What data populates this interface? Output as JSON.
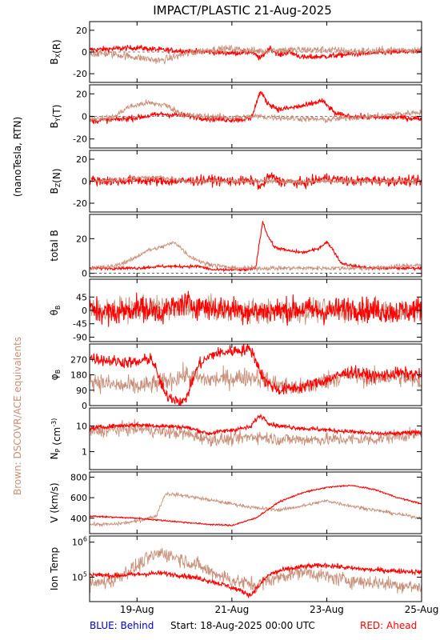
{
  "title": "IMPACT/PLASTIC   21-Aug-2025",
  "left_labels": {
    "units": "(nanoTesla, RTN)",
    "brown_note": "Brown: DSCOVR/ACE equivalents"
  },
  "footer": {
    "blue_label": "BLUE: Behind",
    "start_label": "Start: 18-Aug-2025 00:00 UTC",
    "red_label": "RED: Ahead"
  },
  "colors": {
    "ahead": "#ff0000",
    "brown": "#c8907a",
    "blue": "#0000cc",
    "axis": "#000000",
    "background": "#ffffff"
  },
  "chart_data": {
    "type": "line",
    "x_range_days": [
      18.0,
      25.0
    ],
    "x_ticks": [
      {
        "day": 19,
        "label": "19-Aug"
      },
      {
        "day": 21,
        "label": "21-Aug"
      },
      {
        "day": 23,
        "label": "23-Aug"
      },
      {
        "day": 25,
        "label": "25-Aug"
      }
    ],
    "panels": [
      {
        "id": "bx",
        "ylabel": "B_X(R)",
        "scale": "linear",
        "ylim": [
          -28,
          28
        ],
        "yticks": [
          {
            "v": 20,
            "label": "20"
          },
          {
            "v": 0,
            "label": "0"
          },
          {
            "v": -20,
            "label": "-20"
          }
        ],
        "series": [
          {
            "name": "Ahead",
            "color": "#ff0000",
            "noise": 1.8,
            "x": [
              18.0,
              18.5,
              19.0,
              19.5,
              20.0,
              20.5,
              21.0,
              21.4,
              21.6,
              21.8,
              22.0,
              22.2,
              22.5,
              23.0,
              23.5,
              24.0,
              24.5,
              25.0
            ],
            "y": [
              2,
              3,
              4,
              2,
              1,
              0,
              -1,
              0,
              -6,
              4,
              -3,
              0,
              -5,
              -4,
              -2,
              -1,
              0,
              0
            ]
          },
          {
            "name": "Brown",
            "color": "#c8907a",
            "noise": 2.5,
            "x": [
              18.0,
              18.5,
              19.0,
              19.5,
              20.0,
              20.5,
              21.0,
              21.5,
              22.0,
              22.5,
              23.0,
              23.5,
              24.0,
              24.5,
              25.0
            ],
            "y": [
              -1,
              -2,
              -5,
              -8,
              -2,
              2,
              3,
              1,
              2,
              2,
              2,
              1,
              1,
              2,
              2
            ]
          }
        ]
      },
      {
        "id": "by",
        "ylabel": "B_Y(T)",
        "scale": "linear",
        "ylim": [
          -28,
          28
        ],
        "yticks": [
          {
            "v": 20,
            "label": "20"
          },
          {
            "v": 0,
            "label": "0"
          },
          {
            "v": -20,
            "label": "-20"
          }
        ],
        "series": [
          {
            "name": "Ahead",
            "color": "#ff0000",
            "noise": 1.8,
            "x": [
              18.0,
              18.5,
              19.0,
              19.5,
              20.0,
              20.5,
              21.0,
              21.4,
              21.6,
              21.75,
              22.0,
              22.3,
              22.6,
              22.9,
              23.2,
              23.5,
              24.0,
              24.5,
              25.0
            ],
            "y": [
              -4,
              -3,
              -1,
              2,
              1,
              -2,
              -3,
              -2,
              22,
              12,
              6,
              8,
              10,
              14,
              2,
              0,
              -1,
              -1,
              -2
            ]
          },
          {
            "name": "Brown",
            "color": "#c8907a",
            "noise": 2.0,
            "x": [
              18.0,
              18.5,
              18.8,
              19.2,
              19.6,
              20.0,
              20.5,
              21.0,
              21.5,
              22.0,
              22.5,
              23.0,
              23.5,
              24.0,
              24.5,
              25.0
            ],
            "y": [
              -2,
              -1,
              8,
              12,
              10,
              1,
              0,
              -1,
              0,
              -1,
              -2,
              -3,
              -1,
              0,
              2,
              4
            ]
          }
        ]
      },
      {
        "id": "bz",
        "ylabel": "B_Z(N)",
        "scale": "linear",
        "ylim": [
          -28,
          28
        ],
        "yticks": [
          {
            "v": 20,
            "label": "20"
          },
          {
            "v": 0,
            "label": "0"
          },
          {
            "v": -20,
            "label": "-20"
          }
        ],
        "series": [
          {
            "name": "Ahead",
            "color": "#ff0000",
            "noise": 3.2,
            "x": [
              18.0,
              18.5,
              19.0,
              19.5,
              20.0,
              20.5,
              21.0,
              21.5,
              21.6,
              21.8,
              22.0,
              22.5,
              23.0,
              23.5,
              24.0,
              24.5,
              25.0
            ],
            "y": [
              1,
              0,
              1,
              0,
              0,
              1,
              0,
              0,
              -6,
              5,
              0,
              -2,
              3,
              0,
              1,
              0,
              0
            ]
          },
          {
            "name": "Brown",
            "color": "#c8907a",
            "noise": 1.5,
            "x": [
              18.0,
              18.5,
              19.0,
              19.5,
              20.0,
              20.5,
              21.0,
              22.0,
              23.0,
              24.0,
              25.0
            ],
            "y": [
              0,
              1,
              3,
              4,
              0,
              0,
              0,
              0,
              0,
              0,
              0
            ]
          }
        ]
      },
      {
        "id": "btot",
        "ylabel": "total B",
        "scale": "linear",
        "ylim": [
          -2,
          34
        ],
        "yticks": [
          {
            "v": 20,
            "label": "20"
          },
          {
            "v": 0,
            "label": "0"
          }
        ],
        "series": [
          {
            "name": "Ahead",
            "color": "#ff0000",
            "noise": 0.6,
            "x": [
              18.0,
              18.5,
              19.0,
              19.5,
              20.0,
              20.3,
              20.6,
              21.0,
              21.3,
              21.5,
              21.65,
              21.75,
              21.9,
              22.2,
              22.5,
              22.8,
              23.0,
              23.1,
              23.3,
              23.6,
              24.0,
              24.5,
              25.0
            ],
            "y": [
              3,
              3,
              3,
              4,
              4,
              4,
              2,
              2,
              2,
              3,
              30,
              22,
              15,
              13,
              12,
              14,
              18,
              15,
              6,
              4,
              3,
              3,
              3
            ]
          },
          {
            "name": "Brown",
            "color": "#c8907a",
            "noise": 0.9,
            "x": [
              18.0,
              18.5,
              18.9,
              19.2,
              19.5,
              19.8,
              20.1,
              20.4,
              21.0,
              21.5,
              22.0,
              22.5,
              23.0,
              23.5,
              24.0,
              24.5,
              25.0
            ],
            "y": [
              3,
              4,
              8,
              13,
              15,
              18,
              10,
              6,
              3,
              3,
              3,
              3,
              3,
              3,
              3,
              4,
              5
            ]
          }
        ]
      },
      {
        "id": "theta",
        "ylabel": "θ_B",
        "scale": "linear",
        "ylim": [
          -105,
          105
        ],
        "yticks": [
          {
            "v": 45,
            "label": "45"
          },
          {
            "v": 0,
            "label": "0"
          },
          {
            "v": -45,
            "label": "-45"
          },
          {
            "v": -90,
            "label": "-90"
          }
        ],
        "series": [
          {
            "name": "Brown",
            "color": "#c8907a",
            "noise": 28,
            "x": [
              18.0,
              19.0,
              20.0,
              21.0,
              22.0,
              23.0,
              24.0,
              25.0
            ],
            "y": [
              0,
              5,
              10,
              0,
              -5,
              0,
              0,
              0
            ]
          },
          {
            "name": "Ahead",
            "color": "#ff0000",
            "noise": 30,
            "x": [
              18.0,
              18.5,
              19.0,
              19.5,
              20.0,
              20.5,
              21.0,
              21.5,
              22.0,
              22.5,
              23.0,
              23.5,
              24.0,
              24.5,
              25.0
            ],
            "y": [
              5,
              -10,
              10,
              -5,
              25,
              10,
              5,
              -5,
              0,
              5,
              -5,
              10,
              0,
              -5,
              5
            ]
          }
        ]
      },
      {
        "id": "phi",
        "ylabel": "φ_B",
        "scale": "linear",
        "ylim": [
          0,
          360
        ],
        "yticks": [
          {
            "v": 270,
            "label": "270"
          },
          {
            "v": 180,
            "label": "180"
          },
          {
            "v": 90,
            "label": "90"
          },
          {
            "v": 0,
            "label": "0"
          }
        ],
        "series": [
          {
            "name": "Brown",
            "color": "#c8907a",
            "noise": 40,
            "x": [
              18.0,
              18.5,
              19.0,
              19.5,
              20.0,
              20.5,
              21.0,
              21.5,
              22.0,
              22.5,
              23.0,
              23.5,
              24.0,
              24.5,
              25.0
            ],
            "y": [
              150,
              120,
              110,
              130,
              180,
              150,
              160,
              170,
              120,
              100,
              150,
              180,
              160,
              170,
              140
            ]
          },
          {
            "name": "Ahead",
            "color": "#ff0000",
            "noise": 25,
            "x": [
              18.0,
              18.5,
              19.0,
              19.3,
              19.6,
              20.0,
              20.3,
              20.6,
              21.0,
              21.4,
              21.7,
              22.0,
              22.5,
              23.0,
              23.5,
              24.0,
              24.5,
              25.0
            ],
            "y": [
              280,
              260,
              250,
              280,
              60,
              20,
              240,
              300,
              320,
              330,
              140,
              90,
              110,
              150,
              200,
              170,
              190,
              180
            ]
          }
        ]
      },
      {
        "id": "np",
        "ylabel": "N_P (cm^-3)",
        "scale": "log",
        "ylim": [
          0.2,
          50
        ],
        "yticks": [
          {
            "v": 10,
            "label": "10"
          },
          {
            "v": 1,
            "label": "1"
          }
        ],
        "series": [
          {
            "name": "Brown",
            "color": "#c8907a",
            "noise": 0.18,
            "x": [
              18.0,
              18.5,
              19.0,
              19.5,
              20.0,
              20.5,
              21.0,
              21.5,
              22.0,
              22.5,
              23.0,
              23.5,
              24.0,
              24.5,
              25.0
            ],
            "y": [
              6,
              7,
              8,
              6,
              5,
              3,
              3,
              4,
              3,
              3,
              3,
              3,
              3,
              4,
              5
            ]
          },
          {
            "name": "Ahead",
            "color": "#ff0000",
            "noise": 0.06,
            "x": [
              18.0,
              18.5,
              19.0,
              19.5,
              20.0,
              20.5,
              21.0,
              21.4,
              21.6,
              21.8,
              22.0,
              22.5,
              23.0,
              23.5,
              24.0,
              24.5,
              25.0
            ],
            "y": [
              8,
              10,
              11,
              10,
              9,
              5,
              7,
              9,
              25,
              12,
              10,
              8,
              7,
              6,
              5,
              5,
              6
            ]
          }
        ]
      },
      {
        "id": "v",
        "ylabel": "V (km/s)",
        "scale": "linear",
        "ylim": [
          250,
          850
        ],
        "yticks": [
          {
            "v": 800,
            "label": "800"
          },
          {
            "v": 600,
            "label": "600"
          },
          {
            "v": 400,
            "label": "400"
          }
        ],
        "series": [
          {
            "name": "Brown",
            "color": "#c8907a",
            "noise": 12,
            "x": [
              18.0,
              18.5,
              19.0,
              19.4,
              19.6,
              20.0,
              20.5,
              21.0,
              21.5,
              22.0,
              22.5,
              23.0,
              23.5,
              24.0,
              24.5,
              25.0
            ],
            "y": [
              340,
              340,
              370,
              420,
              640,
              620,
              580,
              540,
              500,
              480,
              520,
              570,
              520,
              480,
              440,
              400
            ]
          },
          {
            "name": "Ahead",
            "color": "#ff0000",
            "noise": 5,
            "x": [
              18.0,
              18.5,
              19.0,
              19.5,
              20.0,
              20.5,
              21.0,
              21.5,
              22.0,
              22.5,
              23.0,
              23.5,
              24.0,
              24.5,
              25.0
            ],
            "y": [
              420,
              410,
              400,
              380,
              360,
              340,
              330,
              400,
              560,
              650,
              700,
              720,
              680,
              600,
              540
            ]
          }
        ]
      },
      {
        "id": "temp",
        "ylabel": "Ion Temp",
        "scale": "log",
        "ylim": [
          20000,
          1500000
        ],
        "yticks": [
          {
            "v": 1000000,
            "label": "10^6"
          },
          {
            "v": 100000,
            "label": "10^5"
          }
        ],
        "series": [
          {
            "name": "Brown",
            "color": "#c8907a",
            "noise": 0.15,
            "x": [
              18.0,
              18.5,
              19.0,
              19.5,
              20.0,
              20.5,
              21.0,
              21.5,
              22.0,
              22.5,
              23.0,
              23.5,
              24.0,
              24.5,
              25.0
            ],
            "y": [
              60000,
              80000,
              200000,
              500000,
              300000,
              150000,
              80000,
              60000,
              100000,
              150000,
              100000,
              80000,
              70000,
              60000,
              50000
            ]
          },
          {
            "name": "Ahead",
            "color": "#ff0000",
            "noise": 0.05,
            "x": [
              18.0,
              18.5,
              19.0,
              19.5,
              20.0,
              20.5,
              21.0,
              21.4,
              21.6,
              21.8,
              22.0,
              22.5,
              23.0,
              23.5,
              24.0,
              24.5,
              25.0
            ],
            "y": [
              120000,
              110000,
              120000,
              130000,
              110000,
              80000,
              50000,
              30000,
              60000,
              120000,
              150000,
              200000,
              220000,
              180000,
              160000,
              150000,
              140000
            ]
          }
        ]
      }
    ]
  }
}
